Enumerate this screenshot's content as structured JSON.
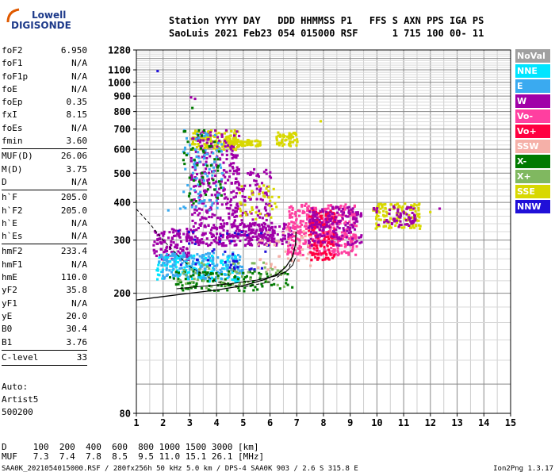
{
  "logo": {
    "line1": "Lowell",
    "line2": "DIGISONDE"
  },
  "header": {
    "line1": "Station YYYY DAY   DDD HHMMSS P1   FFS S AXN PPS IGA PS",
    "line2": "SaoLuis 2021 Feb23 054 015000 RSF      1 715 100 00- 11"
  },
  "params": {
    "group1": [
      {
        "k": "foF2",
        "v": "6.950"
      },
      {
        "k": "foF1",
        "v": "N/A"
      },
      {
        "k": "foF1p",
        "v": "N/A"
      },
      {
        "k": "foE",
        "v": "N/A"
      },
      {
        "k": "foEp",
        "v": "0.35"
      },
      {
        "k": "fxI",
        "v": "8.15"
      },
      {
        "k": "foEs",
        "v": "N/A"
      },
      {
        "k": "fmin",
        "v": "3.60"
      }
    ],
    "group2": [
      {
        "k": "MUF(D)",
        "v": "26.06"
      },
      {
        "k": "M(D)",
        "v": "3.75"
      },
      {
        "k": "D",
        "v": "N/A"
      }
    ],
    "group3": [
      {
        "k": "h`F",
        "v": "205.0"
      },
      {
        "k": "h`F2",
        "v": "205.0"
      },
      {
        "k": "h`E",
        "v": "N/A"
      },
      {
        "k": "h`Es",
        "v": "N/A"
      }
    ],
    "group4": [
      {
        "k": "hmF2",
        "v": "233.4"
      },
      {
        "k": "hmF1",
        "v": "N/A"
      },
      {
        "k": "hmE",
        "v": "110.0"
      },
      {
        "k": "yF2",
        "v": "35.8"
      },
      {
        "k": "yF1",
        "v": "N/A"
      },
      {
        "k": "yE",
        "v": "20.0"
      },
      {
        "k": "B0",
        "v": "30.4"
      },
      {
        "k": "B1",
        "v": "3.76"
      }
    ],
    "group5": [
      {
        "k": "C-level",
        "v": "33"
      }
    ]
  },
  "extra": {
    "line1": "Auto:",
    "line2": "Artist5",
    "line3": "500200"
  },
  "legend": [
    {
      "label": "NoVal",
      "color": "#a0a0a0"
    },
    {
      "label": "NNE",
      "color": "#00e5ff"
    },
    {
      "label": "E",
      "color": "#3aaaf0"
    },
    {
      "label": "W",
      "color": "#a000a8"
    },
    {
      "label": "Vo-",
      "color": "#ff3fa0"
    },
    {
      "label": "Vo+",
      "color": "#ff0040"
    },
    {
      "label": "SSW",
      "color": "#f5b0a8"
    },
    {
      "label": "X-",
      "color": "#007a00"
    },
    {
      "label": "X+",
      "color": "#80b860"
    },
    {
      "label": "SSE",
      "color": "#d8d800"
    },
    {
      "label": "NNW",
      "color": "#2010d8"
    }
  ],
  "footer": {
    "line1": "D     100  200  400  600  800 1000 1500 3000 [km]",
    "line2": "MUF   7.3  7.4  7.8  8.5  9.5 11.0 15.1 26.1 [MHz]"
  },
  "bottom": {
    "left": "SAA0K_2021054015000.RSF / 280fx256h 50 kHz 5.0 km / DPS-4 SAA0K 903 / 2.6 S 315.8 E",
    "right": "Ion2Png 1.3.17"
  },
  "chart_data": {
    "type": "scatter",
    "xlim": [
      1,
      15
    ],
    "ylim": [
      80,
      1280
    ],
    "yscale": "log",
    "x_ticks": [
      1,
      2,
      3,
      4,
      5,
      6,
      7,
      8,
      9,
      10,
      11,
      12,
      13,
      14,
      15
    ],
    "y_ticks": [
      80,
      200,
      300,
      400,
      500,
      600,
      700,
      800,
      900,
      1000,
      1100,
      1280
    ],
    "grid": true,
    "clusters": [
      {
        "name": "W",
        "color": "#a000a8",
        "xr": [
          3.0,
          6.8
        ],
        "yr": [
          290,
          345
        ],
        "n": 260
      },
      {
        "name": "W",
        "color": "#a000a8",
        "xr": [
          1.6,
          3.0
        ],
        "yr": [
          260,
          330
        ],
        "n": 120
      },
      {
        "name": "Vo-",
        "color": "#ff3fa0",
        "xr": [
          6.6,
          9.2
        ],
        "yr": [
          270,
          400
        ],
        "n": 380
      },
      {
        "name": "Vo+",
        "color": "#ff0040",
        "xr": [
          7.4,
          8.4
        ],
        "yr": [
          260,
          380
        ],
        "n": 140
      },
      {
        "name": "W",
        "color": "#a000a8",
        "xr": [
          7.4,
          9.4
        ],
        "yr": [
          290,
          390
        ],
        "n": 180
      },
      {
        "name": "SSE",
        "color": "#d8d800",
        "xr": [
          9.8,
          11.6
        ],
        "yr": [
          330,
          400
        ],
        "n": 130
      },
      {
        "name": "W",
        "color": "#a000a8",
        "xr": [
          9.8,
          11.4
        ],
        "yr": [
          335,
          395
        ],
        "n": 60
      },
      {
        "name": "NNE",
        "color": "#00e5ff",
        "xr": [
          1.7,
          4.8
        ],
        "yr": [
          220,
          270
        ],
        "n": 150
      },
      {
        "name": "E",
        "color": "#3aaaf0",
        "xr": [
          1.8,
          5.0
        ],
        "yr": [
          225,
          275
        ],
        "n": 160
      },
      {
        "name": "X-",
        "color": "#007a00",
        "xr": [
          2.2,
          6.8
        ],
        "yr": [
          205,
          240
        ],
        "n": 110
      },
      {
        "name": "X+",
        "color": "#80b860",
        "xr": [
          2.5,
          6.5
        ],
        "yr": [
          210,
          255
        ],
        "n": 70
      },
      {
        "name": "SSE",
        "color": "#d8d800",
        "xr": [
          3.0,
          4.8
        ],
        "yr": [
          600,
          700
        ],
        "n": 140
      },
      {
        "name": "SSE",
        "color": "#d8d800",
        "xr": [
          4.4,
          5.6
        ],
        "yr": [
          620,
          650
        ],
        "n": 70
      },
      {
        "name": "SSE",
        "color": "#d8d800",
        "xr": [
          6.2,
          7.0
        ],
        "yr": [
          620,
          690
        ],
        "n": 60
      },
      {
        "name": "W",
        "color": "#a000a8",
        "xr": [
          3.0,
          4.8
        ],
        "yr": [
          350,
          700
        ],
        "n": 240
      },
      {
        "name": "W",
        "color": "#a000a8",
        "xr": [
          4.6,
          6.0
        ],
        "yr": [
          300,
          520
        ],
        "n": 130
      },
      {
        "name": "E",
        "color": "#3aaaf0",
        "xr": [
          2.7,
          4.2
        ],
        "yr": [
          380,
          700
        ],
        "n": 90
      },
      {
        "name": "X-",
        "color": "#007a00",
        "xr": [
          2.7,
          4.2
        ],
        "yr": [
          400,
          700
        ],
        "n": 50
      },
      {
        "name": "SSE",
        "color": "#d8d800",
        "xr": [
          4.8,
          6.3
        ],
        "yr": [
          350,
          460
        ],
        "n": 40
      },
      {
        "name": "NNW",
        "color": "#2010d8",
        "xr": [
          2.5,
          6.0
        ],
        "yr": [
          240,
          330
        ],
        "n": 40
      },
      {
        "name": "SSW",
        "color": "#f5b0a8",
        "xr": [
          5.5,
          7.5
        ],
        "yr": [
          240,
          330
        ],
        "n": 40
      }
    ],
    "isolated_points": [
      {
        "x": 1.75,
        "y": 1100,
        "color": "#2010d8"
      },
      {
        "x": 3.0,
        "y": 900,
        "color": "#a000a8"
      },
      {
        "x": 3.15,
        "y": 890,
        "color": "#a000a8"
      },
      {
        "x": 3.05,
        "y": 830,
        "color": "#007a00"
      },
      {
        "x": 7.85,
        "y": 750,
        "color": "#d8d800"
      },
      {
        "x": 2.15,
        "y": 380,
        "color": "#3aaaf0"
      },
      {
        "x": 2.6,
        "y": 385,
        "color": "#3aaaf0"
      },
      {
        "x": 12.3,
        "y": 385,
        "color": "#a000a8"
      },
      {
        "x": 11.95,
        "y": 375,
        "color": "#d8d800"
      }
    ],
    "trace_solid_x": [
      1.0,
      2.0,
      3.0,
      4.0,
      5.0,
      5.8,
      6.3,
      6.6,
      6.85,
      6.95,
      6.97
    ],
    "trace_solid_y": [
      190,
      195,
      200,
      205,
      212,
      222,
      232,
      245,
      265,
      290,
      320
    ],
    "trace_inner_x": [
      2.5,
      3.5,
      4.5,
      5.5,
      6.2,
      6.6,
      6.85,
      6.95
    ],
    "trace_inner_y": [
      207,
      211,
      215,
      221,
      228,
      236,
      248,
      262
    ],
    "trace_dashed_x": [
      1.0,
      1.5,
      2.0,
      2.5,
      3.0,
      4.0,
      5.0,
      6.0,
      6.7,
      6.95
    ],
    "trace_dashed_y": [
      380,
      340,
      300,
      270,
      245,
      218,
      210,
      218,
      240,
      290
    ]
  }
}
